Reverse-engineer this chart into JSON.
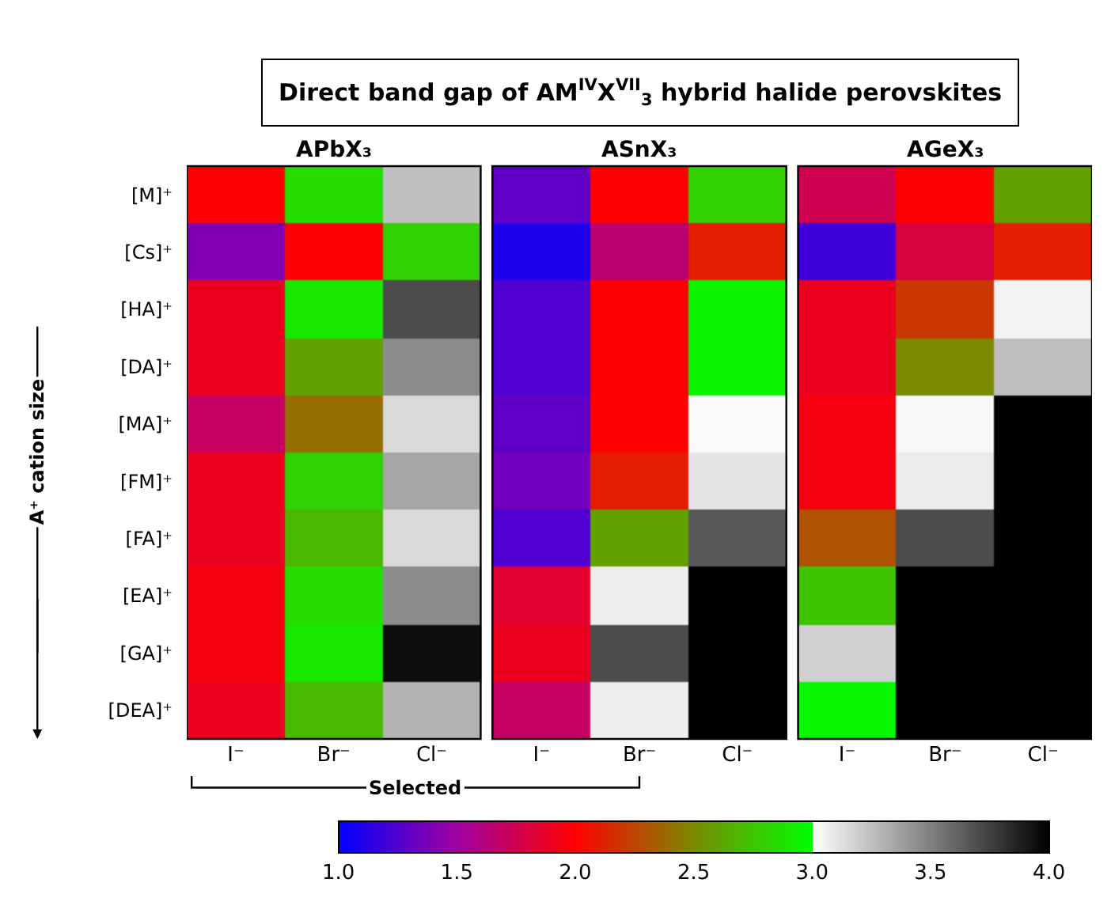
{
  "chart_data": {
    "type": "heatmap",
    "title": "Direct band gap of AM$^{IV}$X$^{VII}$$_{3}$ hybrid halide perovskites",
    "ylabel": "A⁺ cation size",
    "categories": [
      "I⁻",
      "Br⁻",
      "Cl⁻",
      null,
      "I⁻",
      "Br⁻",
      "Cl⁻",
      null,
      "I⁻",
      "Br⁻",
      "Cl⁻"
    ],
    "y_categories": [
      "[M]⁺",
      "[Cs]⁺",
      "[HA]⁺",
      "[DA]⁺",
      "[MA]⁺",
      "[FM]⁺",
      "[FA]⁺",
      "[EA]⁺",
      "[GA]⁺",
      "[DEA]⁺"
    ],
    "cells": [
      [
        2.0,
        2.85,
        3.25,
        null,
        1.3,
        2.0,
        2.8,
        null,
        1.75,
        2.0,
        2.6
      ],
      [
        1.4,
        2.0,
        2.8,
        null,
        1.1,
        1.65,
        2.1,
        null,
        1.2,
        1.8,
        2.1
      ],
      [
        1.9,
        2.9,
        3.7,
        null,
        1.25,
        2.0,
        2.95,
        null,
        1.9,
        2.2,
        3.05
      ],
      [
        1.9,
        2.6,
        3.45,
        null,
        1.25,
        2.0,
        2.95,
        null,
        1.9,
        2.5,
        3.25
      ],
      [
        1.7,
        2.4,
        3.15,
        null,
        1.3,
        2.0,
        3.02,
        null,
        1.95,
        3.03,
        4.0
      ],
      [
        1.9,
        2.8,
        3.35,
        null,
        1.35,
        2.1,
        3.1,
        null,
        1.95,
        3.08,
        4.0
      ],
      [
        1.9,
        2.7,
        3.15,
        null,
        1.25,
        2.6,
        3.65,
        null,
        2.3,
        3.7,
        4.0
      ],
      [
        1.95,
        2.85,
        3.45,
        null,
        1.85,
        3.07,
        4.0,
        null,
        2.75,
        4.0,
        4.0
      ],
      [
        1.95,
        2.9,
        3.95,
        null,
        1.9,
        3.7,
        4.0,
        null,
        3.18,
        4.0,
        4.0
      ],
      [
        1.9,
        2.7,
        3.3,
        null,
        1.7,
        3.07,
        4.0,
        null,
        2.97,
        4.0,
        4.0
      ]
    ],
    "clim": [
      1.0,
      4.0
    ],
    "cticks": [
      {
        "value": 1.0,
        "label": "1.0"
      },
      {
        "value": 1.5,
        "label": "1.5"
      },
      {
        "value": 2.0,
        "label": "2.0"
      },
      {
        "value": 2.5,
        "label": "2.5"
      },
      {
        "value": 3.0,
        "label": "3.0"
      },
      {
        "value": 3.5,
        "label": "3.5"
      },
      {
        "value": 4.0,
        "label": "4.0"
      }
    ],
    "annotations": [
      "APbX₃",
      "ASnX₃",
      "AGeX₃",
      "Selected"
    ]
  }
}
